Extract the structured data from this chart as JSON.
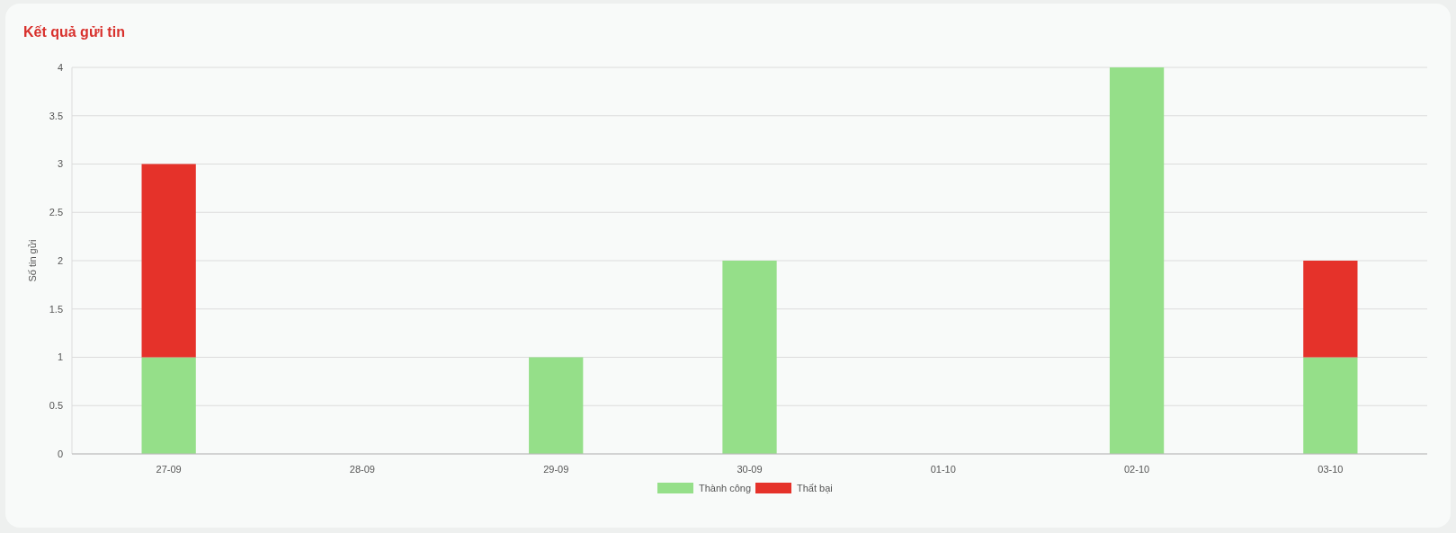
{
  "chart_data": {
    "type": "bar",
    "title": "Kết quả gửi tin",
    "ylabel": "Số tin gửi",
    "categories": [
      "27-09",
      "28-09",
      "29-09",
      "30-09",
      "01-10",
      "02-10",
      "03-10"
    ],
    "series": [
      {
        "name": "Thành công",
        "color": "#95df89",
        "values": [
          1,
          0,
          1,
          2,
          0,
          4,
          1
        ]
      },
      {
        "name": "Thất bại",
        "color": "#e5322a",
        "values": [
          2,
          0,
          0,
          0,
          0,
          0,
          1
        ]
      }
    ],
    "stacked": true,
    "ylim": [
      0,
      4
    ],
    "yticks": [
      0,
      0.5,
      1,
      1.5,
      2,
      2.5,
      3,
      3.5,
      4
    ],
    "grid": "y",
    "legend": "bottom"
  }
}
